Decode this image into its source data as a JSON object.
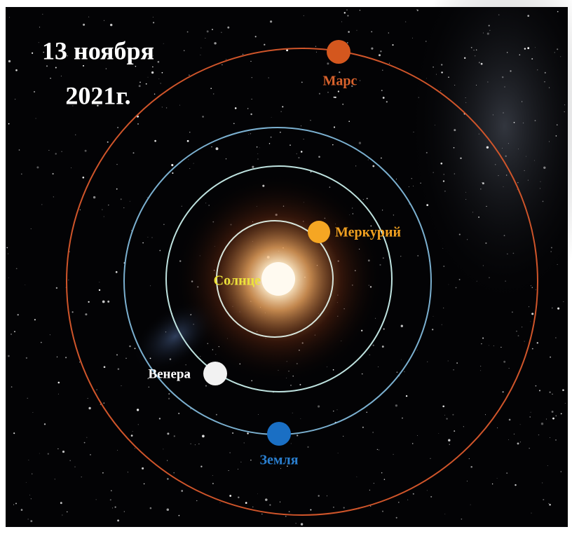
{
  "title": {
    "line1": "13 ноября",
    "line2": "2021г."
  },
  "bodies": {
    "sun": "Солнце",
    "mercury": "Меркурий",
    "venus": "Венера",
    "earth": "Земля",
    "mars": "Марс"
  }
}
